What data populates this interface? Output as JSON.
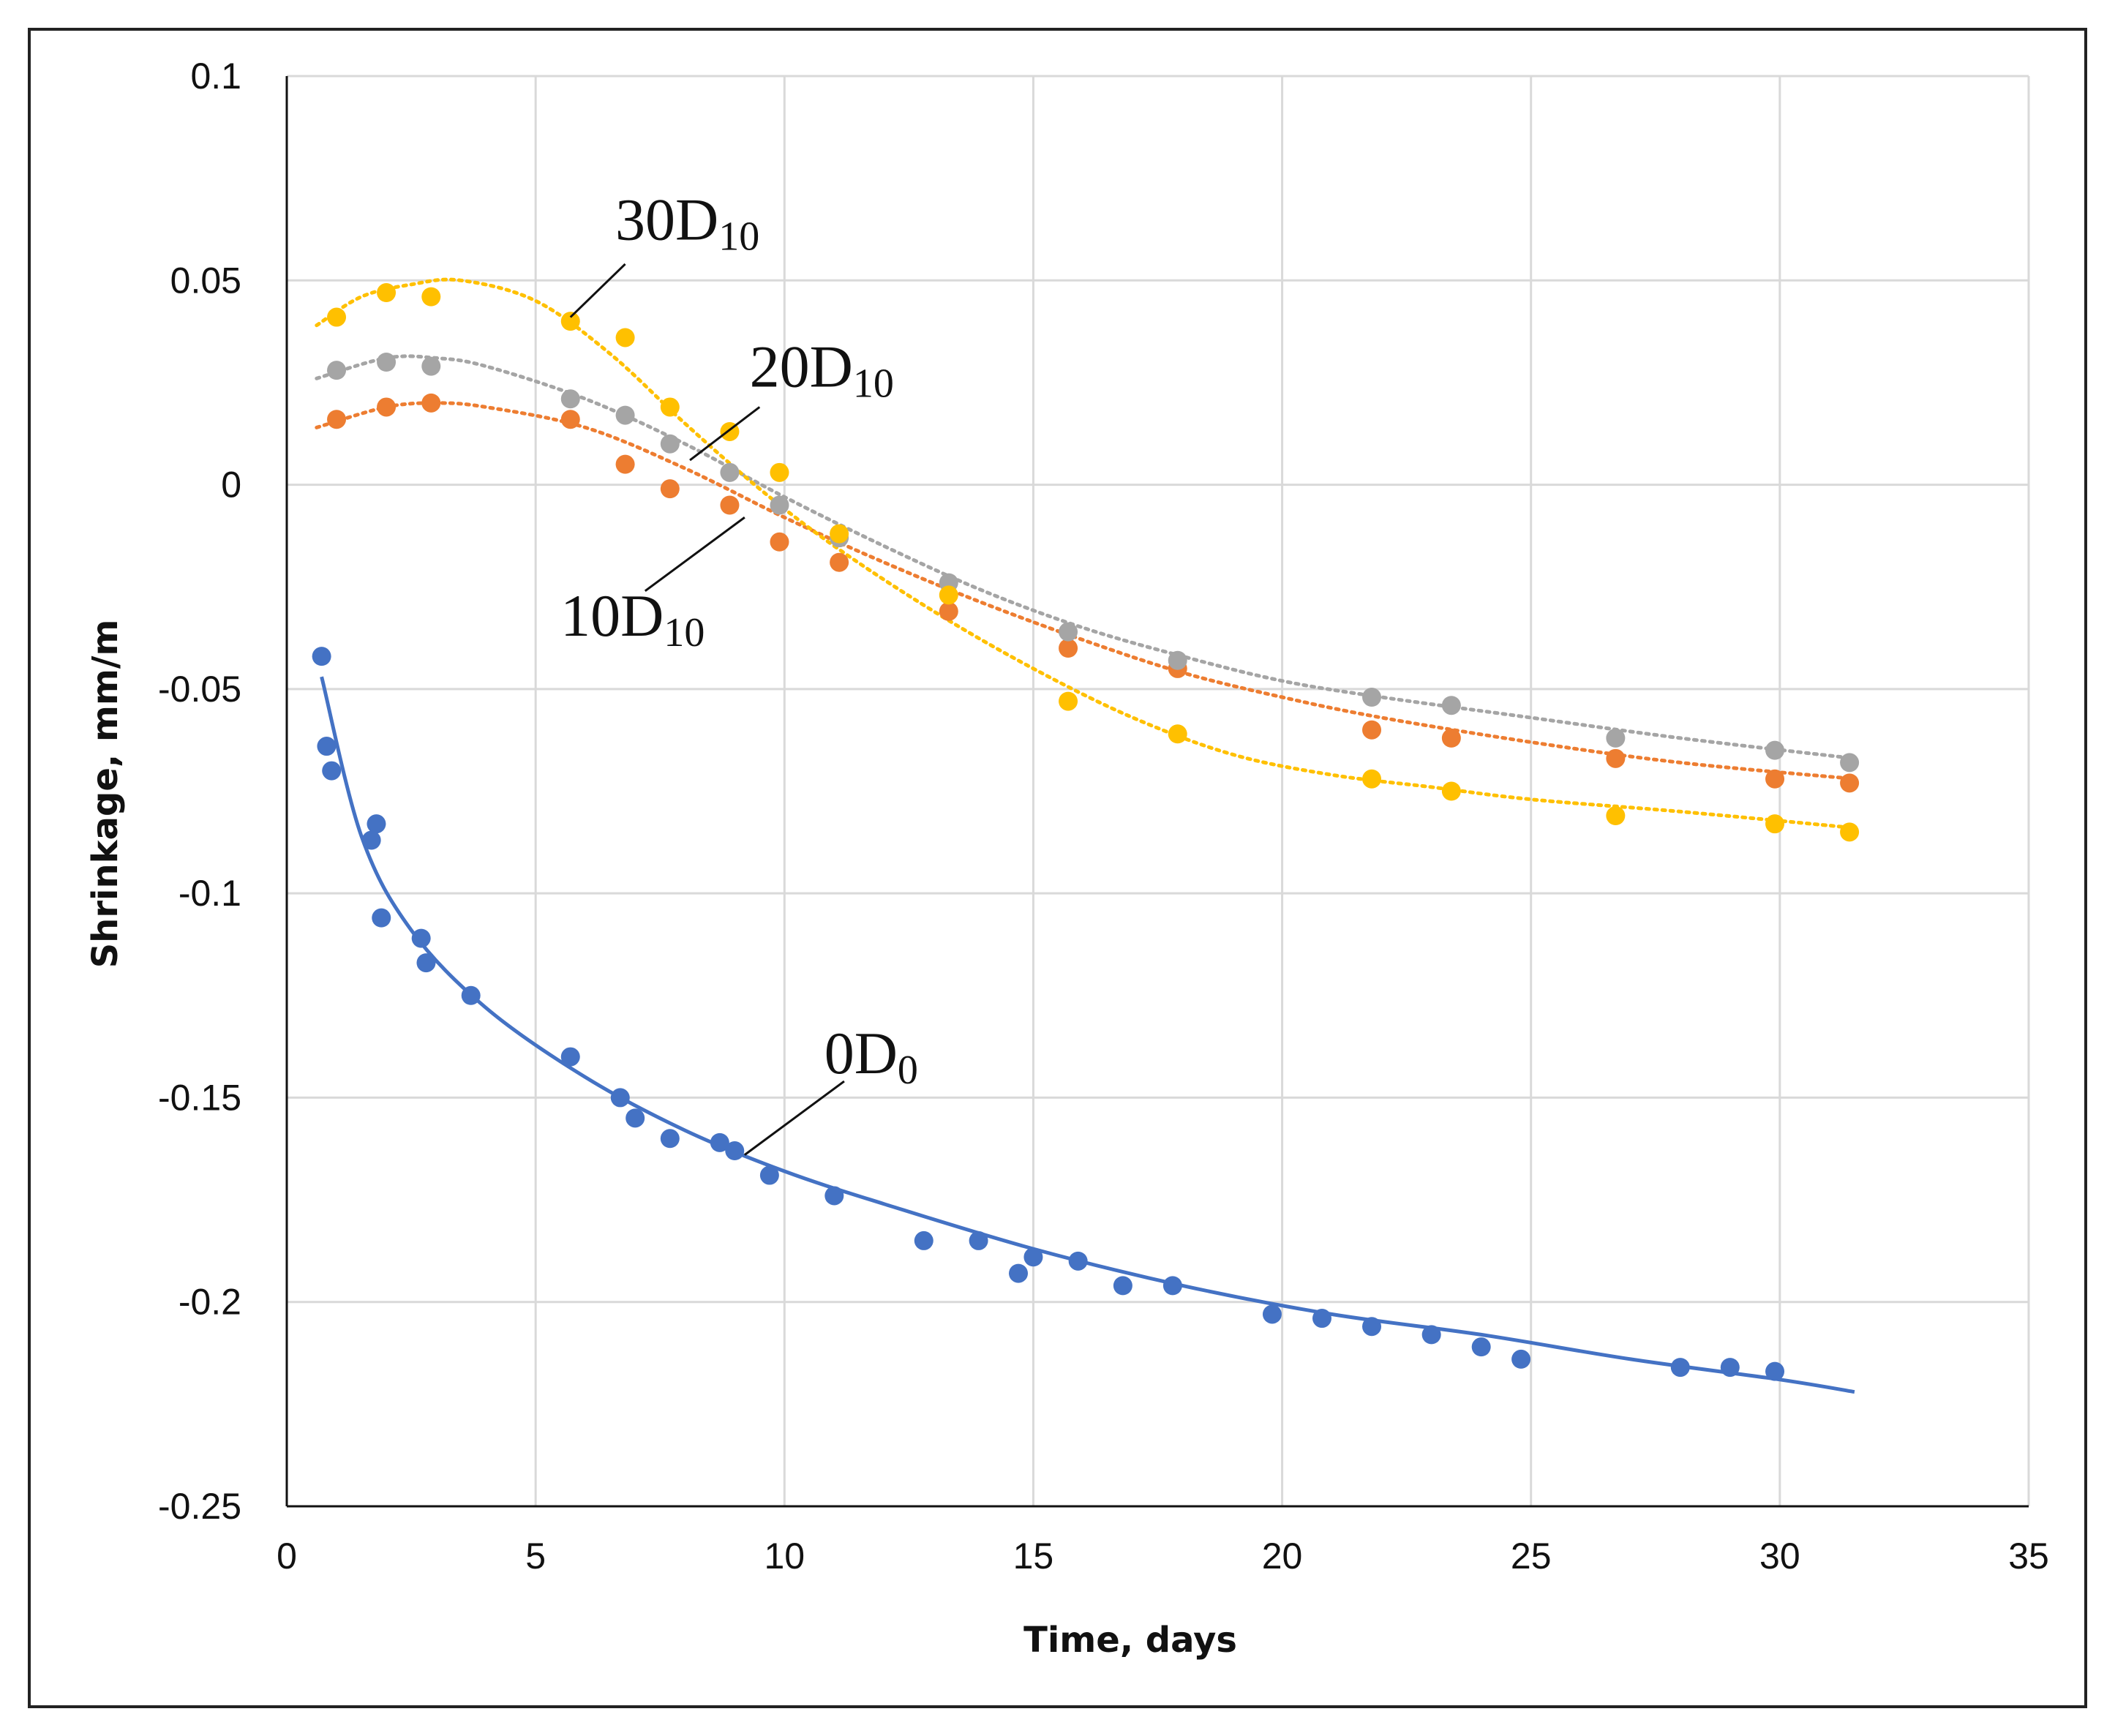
{
  "chart_data": {
    "type": "scatter",
    "title": "",
    "xlabel": "Time, days",
    "ylabel": "Shrinkage, mm/m",
    "xlim": [
      0,
      35
    ],
    "ylim": [
      -0.25,
      0.1
    ],
    "xticks": [
      0,
      5,
      10,
      15,
      20,
      25,
      30,
      35
    ],
    "yticks": [
      0.1,
      0.05,
      0,
      -0.05,
      -0.1,
      -0.15,
      -0.2,
      -0.25
    ],
    "xtick_labels": [
      "0",
      "5",
      "10",
      "15",
      "20",
      "25",
      "30",
      "35"
    ],
    "ytick_labels": [
      "0.1",
      "0.05",
      "0",
      "-0.05",
      "-0.1",
      "-0.15",
      "-0.2",
      "-0.25"
    ],
    "grid": true,
    "series": [
      {
        "name": "0D0",
        "label_main": "0D",
        "label_sub": "0",
        "color": "#4472C4",
        "trend": "solid",
        "x": [
          0.7,
          0.8,
          0.9,
          1.7,
          1.8,
          1.9,
          2.7,
          2.8,
          3.7,
          5.7,
          6.7,
          7.0,
          7.7,
          8.7,
          9.0,
          9.7,
          11.0,
          12.8,
          13.9,
          14.7,
          15.0,
          15.9,
          16.8,
          17.8,
          19.8,
          20.8,
          21.8,
          23.0,
          24.0,
          24.8,
          28.0,
          29.0,
          29.9
        ],
        "y": [
          -0.042,
          -0.064,
          -0.07,
          -0.087,
          -0.083,
          -0.106,
          -0.111,
          -0.117,
          -0.125,
          -0.14,
          -0.15,
          -0.155,
          -0.16,
          -0.161,
          -0.163,
          -0.169,
          -0.174,
          -0.185,
          -0.185,
          -0.193,
          -0.189,
          -0.19,
          -0.196,
          -0.196,
          -0.203,
          -0.204,
          -0.206,
          -0.208,
          -0.211,
          -0.214,
          -0.216,
          -0.216,
          -0.217
        ],
        "trend_x": [
          0.7,
          1.5,
          2.5,
          4,
          6,
          8,
          10,
          12,
          15,
          18,
          21,
          24,
          27,
          30,
          31.5
        ],
        "trend_y": [
          -0.047,
          -0.086,
          -0.109,
          -0.128,
          -0.145,
          -0.158,
          -0.168,
          -0.176,
          -0.187,
          -0.196,
          -0.203,
          -0.208,
          -0.214,
          -0.219,
          -0.222
        ]
      },
      {
        "name": "10D10",
        "label_main": "10D",
        "label_sub": "10",
        "color": "#ED7D31",
        "trend": "dotted",
        "x": [
          1.0,
          2.0,
          2.9,
          5.7,
          6.8,
          7.7,
          8.9,
          9.9,
          11.1,
          13.3,
          15.7,
          17.9,
          21.8,
          23.4,
          26.7,
          29.9,
          31.4
        ],
        "y": [
          0.016,
          0.019,
          0.02,
          0.016,
          0.005,
          -0.001,
          -0.005,
          -0.014,
          -0.019,
          -0.031,
          -0.04,
          -0.045,
          -0.06,
          -0.062,
          -0.067,
          -0.072,
          -0.073
        ],
        "trend_x": [
          0.6,
          2,
          3,
          4,
          6,
          8,
          10,
          12,
          14,
          16,
          18,
          20,
          22,
          25,
          28,
          31.5
        ],
        "trend_y": [
          0.014,
          0.019,
          0.02,
          0.019,
          0.014,
          0.004,
          -0.008,
          -0.019,
          -0.029,
          -0.038,
          -0.046,
          -0.052,
          -0.057,
          -0.063,
          -0.068,
          -0.072
        ]
      },
      {
        "name": "20D10",
        "label_main": "20D",
        "label_sub": "10",
        "color": "#A5A5A5",
        "trend": "dotted",
        "x": [
          1.0,
          2.0,
          2.9,
          5.7,
          6.8,
          7.7,
          8.9,
          9.9,
          11.1,
          13.3,
          15.7,
          17.9,
          21.8,
          23.4,
          26.7,
          29.9,
          31.4
        ],
        "y": [
          0.028,
          0.03,
          0.029,
          0.021,
          0.017,
          0.01,
          0.003,
          -0.005,
          -0.013,
          -0.024,
          -0.036,
          -0.043,
          -0.052,
          -0.054,
          -0.062,
          -0.065,
          -0.068
        ],
        "trend_x": [
          0.6,
          2,
          3,
          4,
          6,
          8,
          10,
          12,
          14,
          16,
          18,
          20,
          22,
          25,
          28,
          31.5
        ],
        "trend_y": [
          0.026,
          0.031,
          0.031,
          0.029,
          0.021,
          0.01,
          -0.003,
          -0.015,
          -0.026,
          -0.035,
          -0.042,
          -0.048,
          -0.052,
          -0.057,
          -0.062,
          -0.067
        ]
      },
      {
        "name": "30D10",
        "label_main": "30D",
        "label_sub": "10",
        "color": "#FFC000",
        "trend": "dotted",
        "x": [
          1.0,
          2.0,
          2.9,
          5.7,
          6.8,
          7.7,
          8.9,
          9.9,
          11.1,
          13.3,
          15.7,
          17.9,
          21.8,
          23.4,
          26.7,
          29.9,
          31.4
        ],
        "y": [
          0.041,
          0.047,
          0.046,
          0.04,
          0.036,
          0.019,
          0.013,
          0.003,
          -0.012,
          -0.027,
          -0.053,
          -0.061,
          -0.072,
          -0.075,
          -0.081,
          -0.083,
          -0.085
        ],
        "trend_x": [
          0.6,
          1.5,
          2.5,
          3.5,
          5,
          6.5,
          8,
          9.5,
          11,
          13,
          15,
          17,
          19,
          21,
          23,
          25,
          28,
          31.5
        ],
        "trend_y": [
          0.039,
          0.046,
          0.049,
          0.05,
          0.045,
          0.032,
          0.015,
          -0.001,
          -0.015,
          -0.031,
          -0.045,
          -0.057,
          -0.066,
          -0.071,
          -0.074,
          -0.077,
          -0.08,
          -0.084
        ]
      }
    ],
    "annotations": [
      {
        "series": "30D10",
        "text_x": 6.6,
        "text_y": 0.06,
        "line_from": [
          6.8,
          0.054
        ],
        "line_to": [
          5.7,
          0.041
        ]
      },
      {
        "series": "20D10",
        "text_x": 9.3,
        "text_y": 0.024,
        "line_from": [
          9.5,
          0.019
        ],
        "line_to": [
          8.1,
          0.006
        ]
      },
      {
        "series": "10D10",
        "text_x": 5.5,
        "text_y": -0.037,
        "line_from": [
          7.2,
          -0.026
        ],
        "line_to": [
          9.2,
          -0.008
        ]
      },
      {
        "series": "0D0",
        "text_x": 10.8,
        "text_y": -0.144,
        "line_from": [
          11.2,
          -0.146
        ],
        "line_to": [
          9.2,
          -0.164
        ]
      }
    ]
  }
}
